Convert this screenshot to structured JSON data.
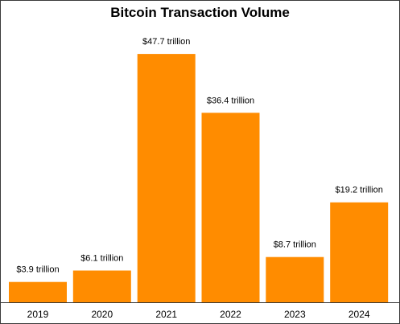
{
  "chart_data": {
    "type": "bar",
    "title": "Bitcoin Transaction Volume",
    "xlabel": "",
    "ylabel": "",
    "categories": [
      "2019",
      "2020",
      "2021",
      "2022",
      "2023",
      "2024"
    ],
    "values": [
      3.9,
      6.1,
      47.7,
      36.4,
      8.7,
      19.2
    ],
    "data_labels": [
      "$3.9 trillion",
      "$6.1 trillion",
      "$47.7 trillion",
      "$36.4 trillion",
      "$8.7 trillion",
      "$19.2 trillion"
    ],
    "ylim": [
      0,
      52.5
    ],
    "grid": false,
    "legend": "none",
    "bar_color": "#ff8c00"
  }
}
